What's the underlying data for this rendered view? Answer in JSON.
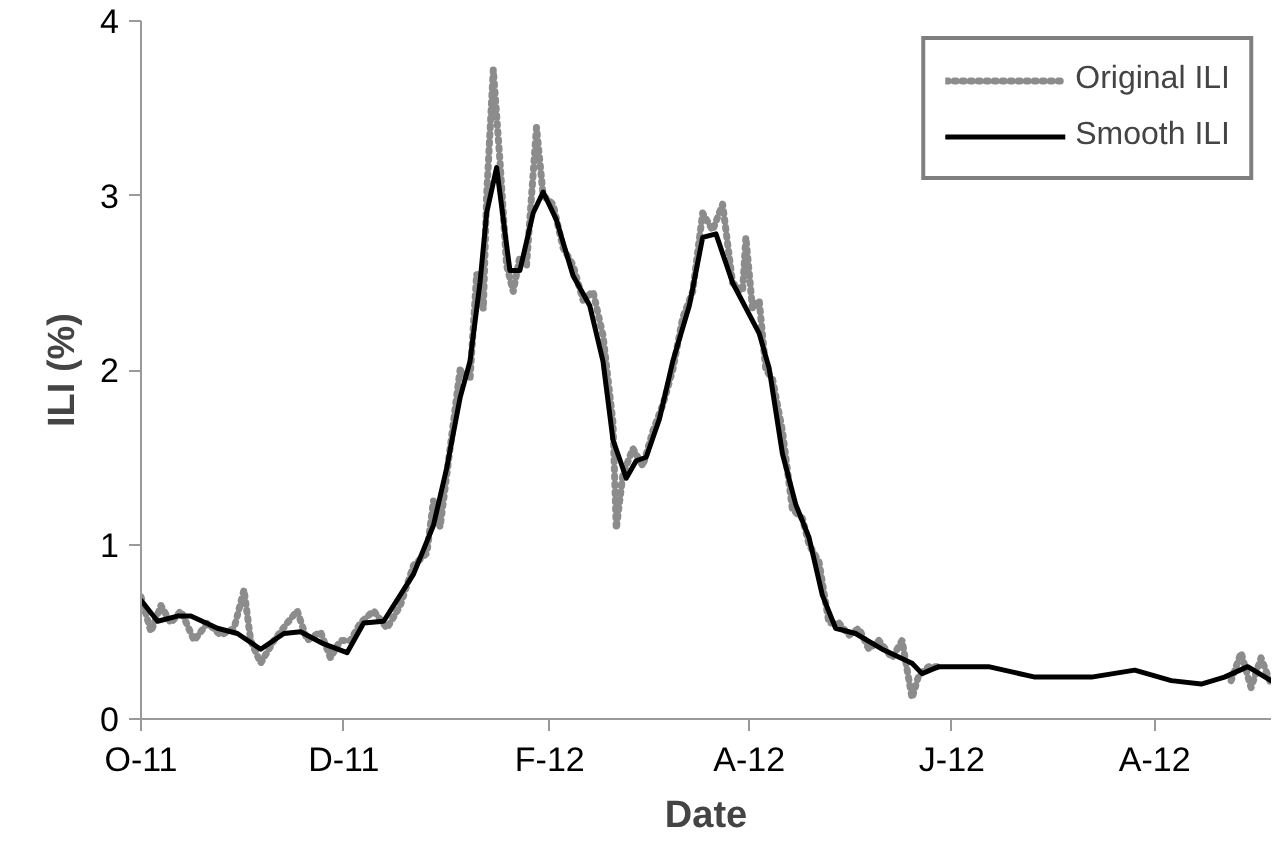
{
  "chart_data": {
    "type": "line",
    "xlabel": "Date",
    "ylabel": "ILI (%)",
    "xlim": [
      "2011-10-01",
      "2012-09-05"
    ],
    "ylim": [
      0,
      4
    ],
    "yticks": [
      0,
      1,
      2,
      3,
      4
    ],
    "xticks": [
      {
        "value": "2011-10-01",
        "label": "O-11"
      },
      {
        "value": "2011-12-01",
        "label": "D-11"
      },
      {
        "value": "2012-02-01",
        "label": "F-12"
      },
      {
        "value": "2012-04-01",
        "label": "A-12"
      },
      {
        "value": "2012-06-01",
        "label": "J-12"
      },
      {
        "value": "2012-08-01",
        "label": "A-12"
      }
    ],
    "grid": false,
    "legend": "top right",
    "marker": "none",
    "series": [
      {
        "name": "Original ILI",
        "color": "#8c8c8c",
        "line_style": "dotted",
        "x": [
          "2011-10-01",
          "2011-10-04",
          "2011-10-07",
          "2011-10-10",
          "2011-10-13",
          "2011-10-17",
          "2011-10-21",
          "2011-10-25",
          "2011-10-29",
          "2011-11-01",
          "2011-11-03",
          "2011-11-06",
          "2011-11-10",
          "2011-11-14",
          "2011-11-17",
          "2011-11-20",
          "2011-11-24",
          "2011-11-27",
          "2011-11-30",
          "2011-12-03",
          "2011-12-06",
          "2011-12-10",
          "2011-12-14",
          "2011-12-18",
          "2011-12-22",
          "2011-12-26",
          "2011-12-28",
          "2011-12-30",
          "2012-01-02",
          "2012-01-05",
          "2012-01-08",
          "2012-01-10",
          "2012-01-12",
          "2012-01-13",
          "2012-01-15",
          "2012-01-17",
          "2012-01-19",
          "2012-01-21",
          "2012-01-23",
          "2012-01-25",
          "2012-01-28",
          "2012-01-30",
          "2012-02-02",
          "2012-02-05",
          "2012-02-08",
          "2012-02-11",
          "2012-02-14",
          "2012-02-17",
          "2012-02-20",
          "2012-02-21",
          "2012-02-23",
          "2012-02-26",
          "2012-02-29",
          "2012-03-03",
          "2012-03-06",
          "2012-03-09",
          "2012-03-12",
          "2012-03-15",
          "2012-03-18",
          "2012-03-21",
          "2012-03-24",
          "2012-03-27",
          "2012-03-30",
          "2012-03-31",
          "2012-04-02",
          "2012-04-04",
          "2012-04-06",
          "2012-04-08",
          "2012-04-11",
          "2012-04-14",
          "2012-04-17",
          "2012-04-19",
          "2012-04-22",
          "2012-04-25",
          "2012-04-28",
          "2012-05-01",
          "2012-05-04",
          "2012-05-07",
          "2012-05-10",
          "2012-05-14",
          "2012-05-17",
          "2012-05-20",
          "2012-05-22",
          "2012-05-25",
          "2012-05-28",
          "2012-06-30",
          "2012-08-24",
          "2012-08-27",
          "2012-08-30",
          "2012-09-02",
          "2012-09-05"
        ],
        "values": [
          0.7,
          0.5,
          0.65,
          0.55,
          0.62,
          0.45,
          0.55,
          0.48,
          0.52,
          0.74,
          0.45,
          0.32,
          0.45,
          0.55,
          0.62,
          0.45,
          0.5,
          0.35,
          0.45,
          0.45,
          0.55,
          0.62,
          0.52,
          0.65,
          0.88,
          0.95,
          1.25,
          1.1,
          1.55,
          2.0,
          1.95,
          2.55,
          2.35,
          3.0,
          3.72,
          3.2,
          2.6,
          2.45,
          2.65,
          2.6,
          3.39,
          3.0,
          2.95,
          2.7,
          2.6,
          2.4,
          2.45,
          2.2,
          1.7,
          1.09,
          1.4,
          1.55,
          1.45,
          1.65,
          1.8,
          2.0,
          2.3,
          2.45,
          2.9,
          2.8,
          2.95,
          2.5,
          2.45,
          2.76,
          2.35,
          2.4,
          2.0,
          1.95,
          1.65,
          1.2,
          1.15,
          1.0,
          0.9,
          0.55,
          0.55,
          0.48,
          0.52,
          0.4,
          0.45,
          0.35,
          0.45,
          0.12,
          0.25,
          0.3,
          0.3,
          null,
          0.22,
          0.38,
          0.18,
          0.35,
          0.2
        ]
      },
      {
        "name": "Smooth ILI",
        "color": "#000000",
        "line_style": "solid",
        "x": [
          "2011-10-01",
          "2011-10-06",
          "2011-10-12",
          "2011-10-16",
          "2011-10-24",
          "2011-10-30",
          "2011-11-06",
          "2011-11-13",
          "2011-11-18",
          "2011-11-25",
          "2011-12-02",
          "2011-12-07",
          "2011-12-13",
          "2011-12-22",
          "2011-12-28",
          "2012-01-01",
          "2012-01-05",
          "2012-01-08",
          "2012-01-11",
          "2012-01-13",
          "2012-01-16",
          "2012-01-20",
          "2012-01-23",
          "2012-01-27",
          "2012-01-30",
          "2012-02-03",
          "2012-02-08",
          "2012-02-13",
          "2012-02-17",
          "2012-02-20",
          "2012-02-24",
          "2012-02-27",
          "2012-03-01",
          "2012-03-05",
          "2012-03-09",
          "2012-03-14",
          "2012-03-18",
          "2012-03-22",
          "2012-03-27",
          "2012-04-04",
          "2012-04-07",
          "2012-04-11",
          "2012-04-15",
          "2012-04-19",
          "2012-04-23",
          "2012-04-27",
          "2012-05-03",
          "2012-05-11",
          "2012-05-20",
          "2012-05-23",
          "2012-05-28",
          "2012-06-12",
          "2012-06-26",
          "2012-07-13",
          "2012-07-26",
          "2012-08-06",
          "2012-08-15",
          "2012-08-22",
          "2012-08-29",
          "2012-09-05"
        ],
        "values": [
          0.68,
          0.56,
          0.59,
          0.59,
          0.52,
          0.49,
          0.4,
          0.49,
          0.5,
          0.43,
          0.38,
          0.55,
          0.56,
          0.83,
          1.11,
          1.44,
          1.84,
          2.05,
          2.5,
          2.9,
          3.16,
          2.57,
          2.57,
          2.9,
          3.02,
          2.86,
          2.54,
          2.37,
          2.05,
          1.6,
          1.38,
          1.48,
          1.5,
          1.72,
          2.05,
          2.37,
          2.76,
          2.78,
          2.5,
          2.21,
          2.01,
          1.52,
          1.23,
          1.04,
          0.71,
          0.52,
          0.49,
          0.4,
          0.32,
          0.26,
          0.3,
          0.3,
          0.24,
          0.24,
          0.28,
          0.22,
          0.2,
          0.24,
          0.3,
          0.22
        ]
      }
    ]
  }
}
